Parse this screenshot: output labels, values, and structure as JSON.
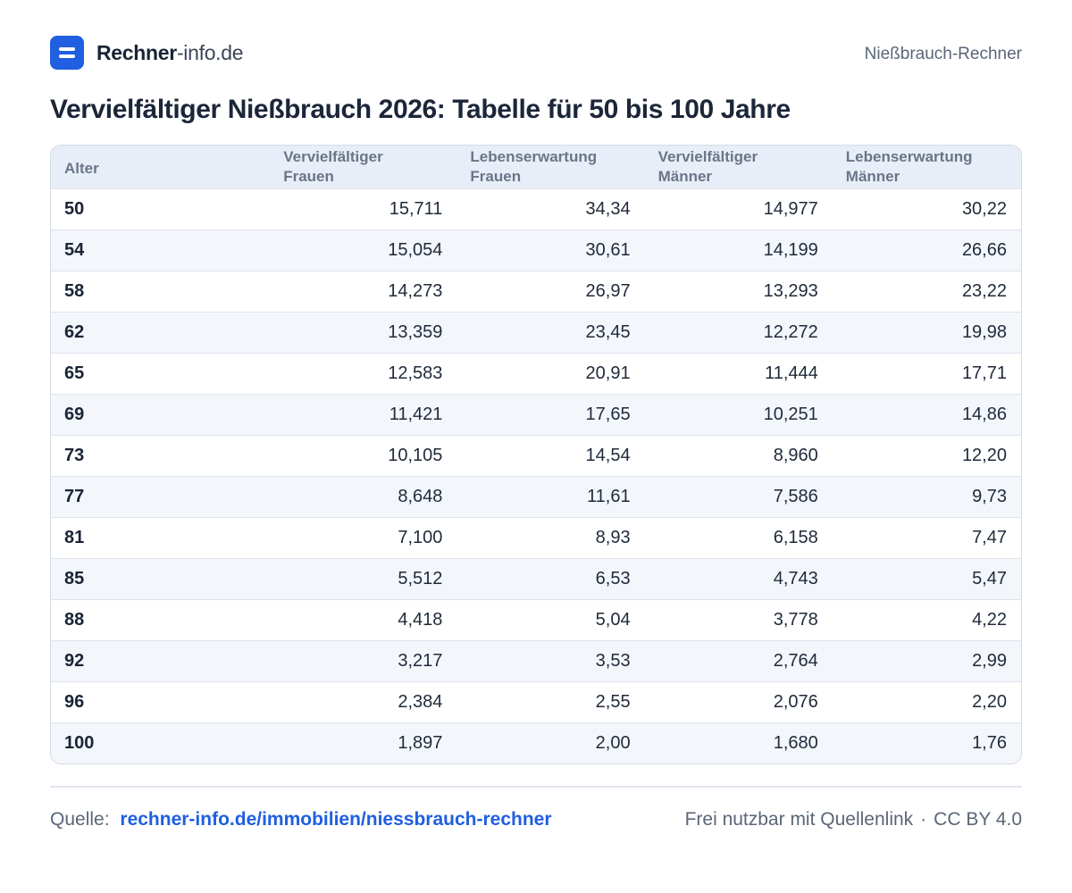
{
  "header": {
    "brand_bold": "Rechner",
    "brand_light": "-info.de",
    "right_label": "Nießbrauch-Rechner"
  },
  "title": "Vervielfältiger Nießbrauch 2026: Tabelle für 50 bis 100 Jahre",
  "table": {
    "headers": [
      [
        "Alter"
      ],
      [
        "Vervielfältiger",
        "Frauen"
      ],
      [
        "Lebenserwartung",
        "Frauen"
      ],
      [
        "Vervielfältiger",
        "Männer"
      ],
      [
        "Lebenserwartung",
        "Männer"
      ]
    ],
    "rows": [
      [
        "50",
        "15,711",
        "34,34",
        "14,977",
        "30,22"
      ],
      [
        "54",
        "15,054",
        "30,61",
        "14,199",
        "26,66"
      ],
      [
        "58",
        "14,273",
        "26,97",
        "13,293",
        "23,22"
      ],
      [
        "62",
        "13,359",
        "23,45",
        "12,272",
        "19,98"
      ],
      [
        "65",
        "12,583",
        "20,91",
        "11,444",
        "17,71"
      ],
      [
        "69",
        "11,421",
        "17,65",
        "10,251",
        "14,86"
      ],
      [
        "73",
        "10,105",
        "14,54",
        "8,960",
        "12,20"
      ],
      [
        "77",
        "8,648",
        "11,61",
        "7,586",
        "9,73"
      ],
      [
        "81",
        "7,100",
        "8,93",
        "6,158",
        "7,47"
      ],
      [
        "85",
        "5,512",
        "6,53",
        "4,743",
        "5,47"
      ],
      [
        "88",
        "4,418",
        "5,04",
        "3,778",
        "4,22"
      ],
      [
        "92",
        "3,217",
        "3,53",
        "2,764",
        "2,99"
      ],
      [
        "96",
        "2,384",
        "2,55",
        "2,076",
        "2,20"
      ],
      [
        "100",
        "1,897",
        "2,00",
        "1,680",
        "1,76"
      ]
    ]
  },
  "footer": {
    "source_label": "Quelle:",
    "source_link": "rechner-info.de/immobilien/niessbrauch-rechner",
    "license_text": "Frei nutzbar mit Quellenlink",
    "separator": "·",
    "license": "CC BY 4.0"
  },
  "colors": {
    "accent": "#1f5fe0",
    "header_bg": "#e8eef7",
    "stripe_bg": "#f3f6fb"
  },
  "icons": {
    "logo": "menu-bars-icon"
  }
}
